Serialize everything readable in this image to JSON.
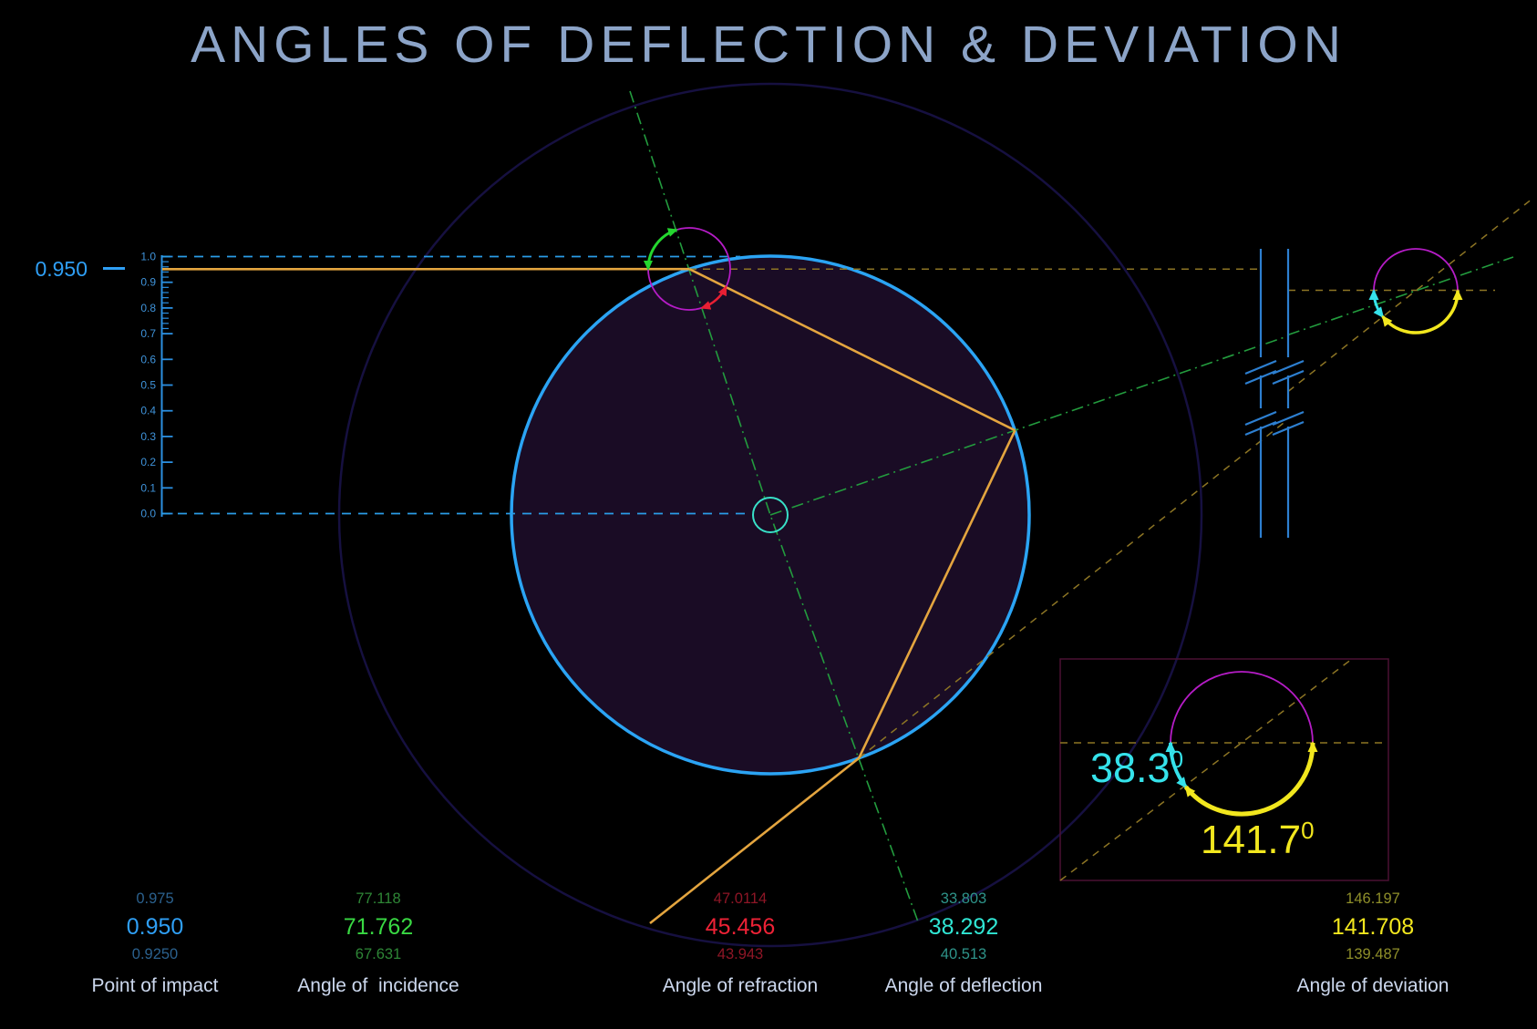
{
  "title": "ANGLES OF DEFLECTION & DEVIATION",
  "impact_marker": {
    "label": "0.950"
  },
  "scale": {
    "ticks": [
      "1.0",
      "0.9",
      "0.8",
      "0.7",
      "0.6",
      "0.5",
      "0.4",
      "0.3",
      "0.2",
      "0.1",
      "0.0"
    ]
  },
  "inset": {
    "deflection_value": "38.3",
    "deflection_sup": "0",
    "deviation_value": "141.7",
    "deviation_sup": "0"
  },
  "columns": [
    {
      "label": "Point of impact",
      "values": [
        "0.975",
        "0.950",
        "0.9250"
      ],
      "faint_color": "#2b618e",
      "bright_color": "#2f9ff5"
    },
    {
      "label": "Angle of  incidence",
      "values": [
        "77.118",
        "71.762",
        "67.631"
      ],
      "faint_color": "#2e8636",
      "bright_color": "#39d943"
    },
    {
      "label": "Angle of refraction",
      "values": [
        "47.0114",
        "45.456",
        "43.943"
      ],
      "faint_color": "#8e1626",
      "bright_color": "#ee2236"
    },
    {
      "label": "Angle of deflection",
      "values": [
        "33.803",
        "38.292",
        "40.513"
      ],
      "faint_color": "#2e948a",
      "bright_color": "#30e6d4"
    },
    {
      "label": "Angle of deviation",
      "values": [
        "146.197",
        "141.708",
        "139.487"
      ],
      "faint_color": "#8f8f2a",
      "bright_color": "#f2e71e"
    }
  ],
  "colors": {
    "title": "#8ca4c8",
    "ray_orange": "#e4a53f",
    "circle_blue": "#2ba4f4",
    "dashed_cyan": "#2a9de8",
    "olive_dash": "#8d7524",
    "normal_green": "#239c3e",
    "arc_green": "#24d72f",
    "arc_red": "#e81f33",
    "magenta": "#b51cc6",
    "teal": "#38e0c8",
    "arc_cyan": "#35e2ea",
    "arc_yellow": "#f2e71e",
    "label_text": "#ccd8ee"
  }
}
